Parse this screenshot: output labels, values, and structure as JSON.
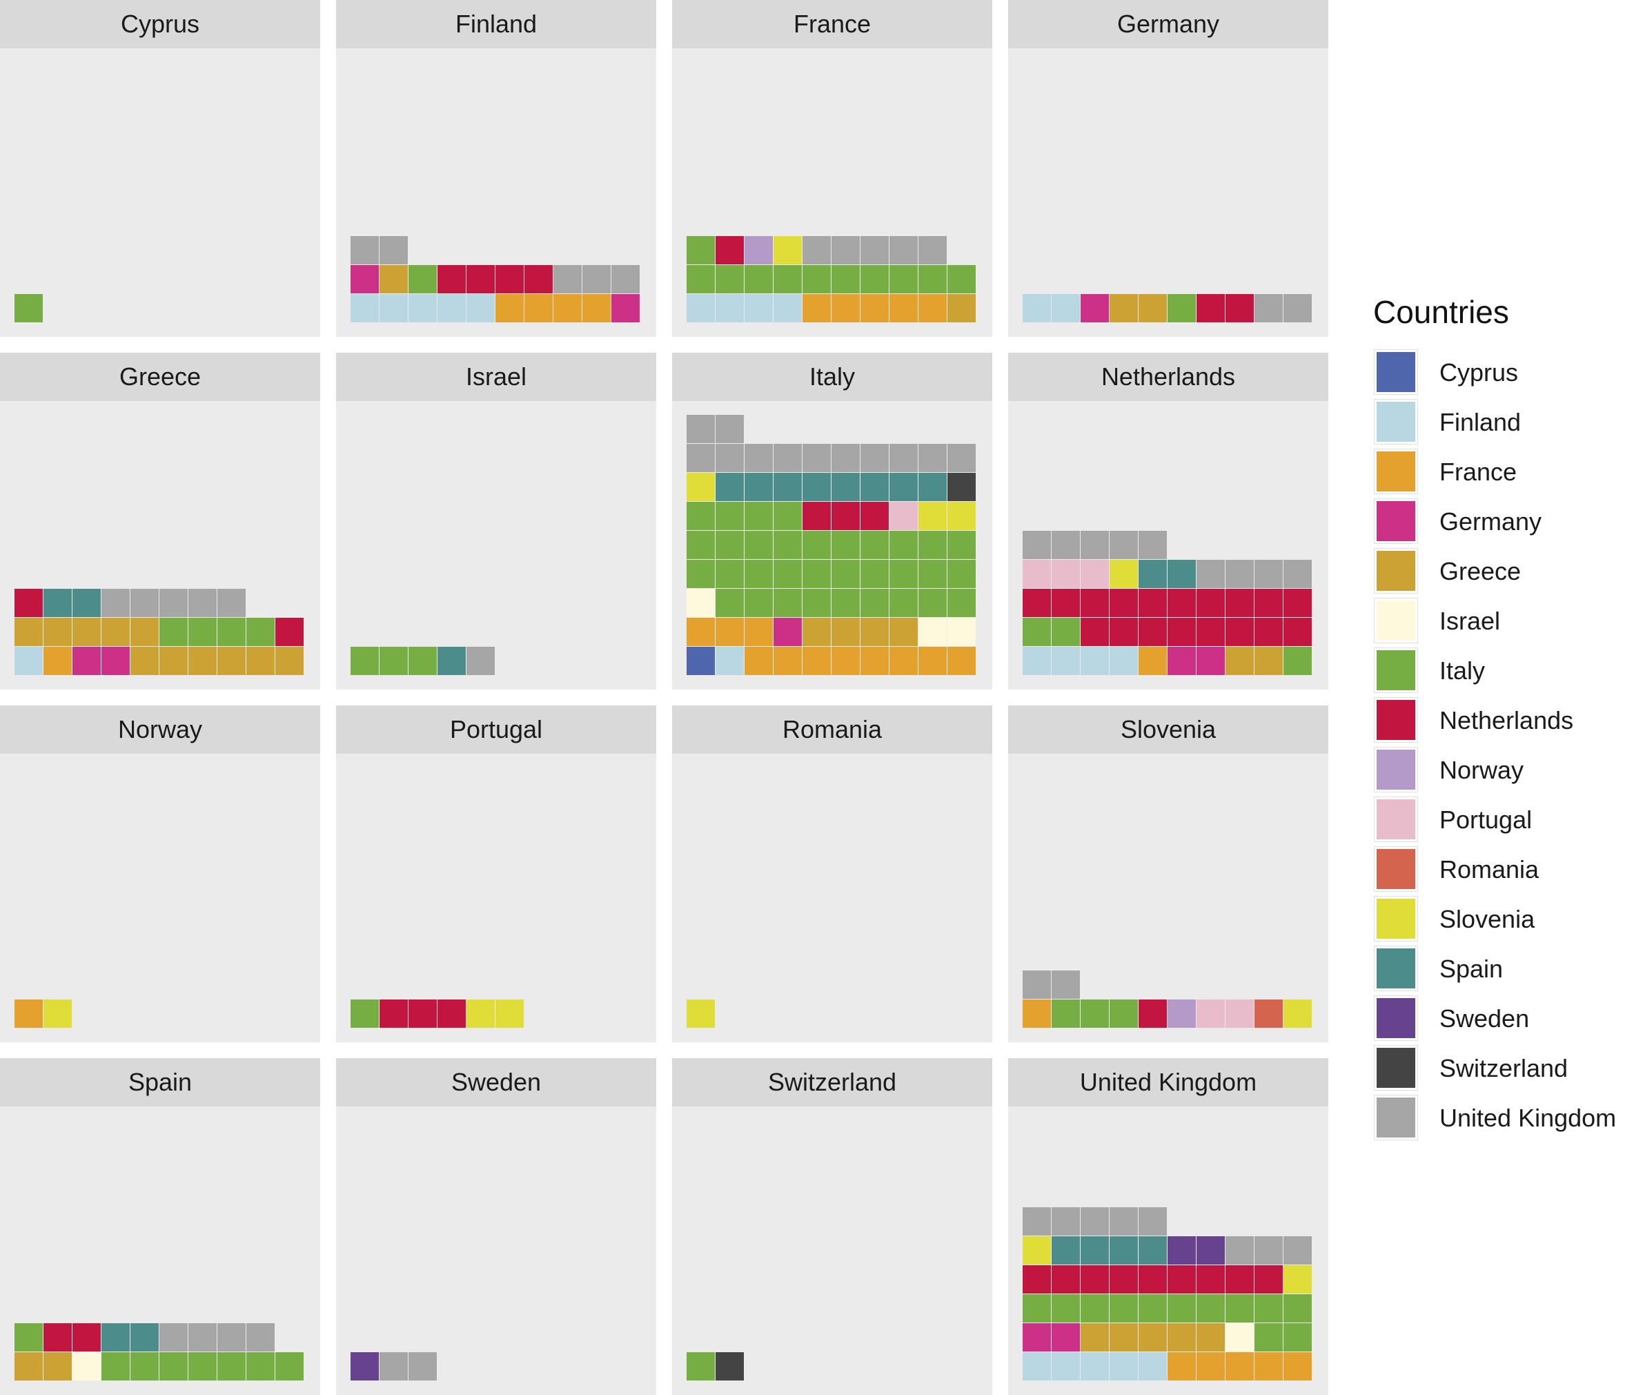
{
  "chart_data": {
    "type": "waffle",
    "layout": "faceted 4x4 grid of waffle charts, legend on right",
    "legend": {
      "title": "Countries",
      "entries": [
        "Cyprus",
        "Finland",
        "France",
        "Germany",
        "Greece",
        "Israel",
        "Italy",
        "Netherlands",
        "Norway",
        "Portugal",
        "Romania",
        "Slovenia",
        "Spain",
        "Sweden",
        "Switzerland",
        "United Kingdom"
      ]
    },
    "colors": {
      "Cyprus": "#4f66ad",
      "Finland": "#b9d7e3",
      "France": "#e5a12d",
      "Germany": "#cd3187",
      "Greece": "#cba233",
      "Israel": "#fef8dd",
      "Italy": "#77ae44",
      "Netherlands": "#c21540",
      "Norway": "#b49ac8",
      "Portugal": "#e8bccb",
      "Romania": "#d4644e",
      "Slovenia": "#e0dd38",
      "Spain": "#4c8c8b",
      "Sweden": "#67428e",
      "Switzerland": "#444444",
      "United Kingdom": "#a6a6a6"
    },
    "panels": [
      {
        "title": "Cyprus",
        "cells": [
          [
            "Italy"
          ]
        ]
      },
      {
        "title": "Finland",
        "cells": [
          [
            "Finland",
            "Finland",
            "Finland",
            "Finland",
            "Finland",
            "France",
            "France",
            "France",
            "France",
            "Germany"
          ],
          [
            "Germany",
            "Greece",
            "Italy",
            "Netherlands",
            "Netherlands",
            "Netherlands",
            "Netherlands",
            "United Kingdom",
            "United Kingdom",
            "United Kingdom"
          ],
          [
            "United Kingdom",
            "United Kingdom"
          ]
        ]
      },
      {
        "title": "France",
        "cells": [
          [
            "Finland",
            "Finland",
            "Finland",
            "Finland",
            "France",
            "France",
            "France",
            "France",
            "France",
            "Greece"
          ],
          [
            "Italy",
            "Italy",
            "Italy",
            "Italy",
            "Italy",
            "Italy",
            "Italy",
            "Italy",
            "Italy",
            "Italy"
          ],
          [
            "Italy",
            "Netherlands",
            "Norway",
            "Slovenia",
            "United Kingdom",
            "United Kingdom",
            "United Kingdom",
            "United Kingdom",
            "United Kingdom"
          ]
        ]
      },
      {
        "title": "Germany",
        "cells": [
          [
            "Finland",
            "Finland",
            "Germany",
            "Greece",
            "Greece",
            "Italy",
            "Netherlands",
            "Netherlands",
            "United Kingdom",
            "United Kingdom"
          ]
        ]
      },
      {
        "title": "Greece",
        "cells": [
          [
            "Finland",
            "France",
            "Germany",
            "Germany",
            "Greece",
            "Greece",
            "Greece",
            "Greece",
            "Greece",
            "Greece"
          ],
          [
            "Greece",
            "Greece",
            "Greece",
            "Greece",
            "Greece",
            "Italy",
            "Italy",
            "Italy",
            "Italy",
            "Netherlands"
          ],
          [
            "Netherlands",
            "Spain",
            "Spain",
            "United Kingdom",
            "United Kingdom",
            "United Kingdom",
            "United Kingdom",
            "United Kingdom"
          ]
        ]
      },
      {
        "title": "Israel",
        "cells": [
          [
            "Italy",
            "Italy",
            "Italy",
            "Spain",
            "United Kingdom"
          ]
        ]
      },
      {
        "title": "Italy",
        "cells": [
          [
            "Cyprus",
            "Finland",
            "France",
            "France",
            "France",
            "France",
            "France",
            "France",
            "France",
            "France"
          ],
          [
            "France",
            "France",
            "France",
            "Germany",
            "Greece",
            "Greece",
            "Greece",
            "Greece",
            "Israel",
            "Israel"
          ],
          [
            "Israel",
            "Italy",
            "Italy",
            "Italy",
            "Italy",
            "Italy",
            "Italy",
            "Italy",
            "Italy",
            "Italy"
          ],
          [
            "Italy",
            "Italy",
            "Italy",
            "Italy",
            "Italy",
            "Italy",
            "Italy",
            "Italy",
            "Italy",
            "Italy"
          ],
          [
            "Italy",
            "Italy",
            "Italy",
            "Italy",
            "Italy",
            "Italy",
            "Italy",
            "Italy",
            "Italy",
            "Italy"
          ],
          [
            "Italy",
            "Italy",
            "Italy",
            "Italy",
            "Netherlands",
            "Netherlands",
            "Netherlands",
            "Portugal",
            "Slovenia",
            "Slovenia"
          ],
          [
            "Slovenia",
            "Spain",
            "Spain",
            "Spain",
            "Spain",
            "Spain",
            "Spain",
            "Spain",
            "Spain",
            "Switzerland"
          ],
          [
            "United Kingdom",
            "United Kingdom",
            "United Kingdom",
            "United Kingdom",
            "United Kingdom",
            "United Kingdom",
            "United Kingdom",
            "United Kingdom",
            "United Kingdom",
            "United Kingdom"
          ],
          [
            "United Kingdom",
            "United Kingdom"
          ]
        ]
      },
      {
        "title": "Netherlands",
        "cells": [
          [
            "Finland",
            "Finland",
            "Finland",
            "Finland",
            "France",
            "Germany",
            "Germany",
            "Greece",
            "Greece",
            "Italy"
          ],
          [
            "Italy",
            "Italy",
            "Netherlands",
            "Netherlands",
            "Netherlands",
            "Netherlands",
            "Netherlands",
            "Netherlands",
            "Netherlands",
            "Netherlands"
          ],
          [
            "Netherlands",
            "Netherlands",
            "Netherlands",
            "Netherlands",
            "Netherlands",
            "Netherlands",
            "Netherlands",
            "Netherlands",
            "Netherlands",
            "Netherlands"
          ],
          [
            "Portugal",
            "Portugal",
            "Portugal",
            "Slovenia",
            "Spain",
            "Spain",
            "United Kingdom",
            "United Kingdom",
            "United Kingdom",
            "United Kingdom"
          ],
          [
            "United Kingdom",
            "United Kingdom",
            "United Kingdom",
            "United Kingdom",
            "United Kingdom"
          ]
        ]
      },
      {
        "title": "Norway",
        "cells": [
          [
            "France",
            "Slovenia"
          ]
        ]
      },
      {
        "title": "Portugal",
        "cells": [
          [
            "Italy",
            "Netherlands",
            "Netherlands",
            "Netherlands",
            "Slovenia",
            "Slovenia"
          ]
        ]
      },
      {
        "title": "Romania",
        "cells": [
          [
            "Slovenia"
          ]
        ]
      },
      {
        "title": "Slovenia",
        "cells": [
          [
            "France",
            "Italy",
            "Italy",
            "Italy",
            "Netherlands",
            "Norway",
            "Portugal",
            "Portugal",
            "Romania",
            "Slovenia"
          ],
          [
            "United Kingdom",
            "United Kingdom"
          ]
        ]
      },
      {
        "title": "Spain",
        "cells": [
          [
            "Greece",
            "Greece",
            "Israel",
            "Italy",
            "Italy",
            "Italy",
            "Italy",
            "Italy",
            "Italy",
            "Italy"
          ],
          [
            "Italy",
            "Netherlands",
            "Netherlands",
            "Spain",
            "Spain",
            "United Kingdom",
            "United Kingdom",
            "United Kingdom",
            "United Kingdom"
          ]
        ]
      },
      {
        "title": "Sweden",
        "cells": [
          [
            "Sweden",
            "United Kingdom",
            "United Kingdom"
          ]
        ]
      },
      {
        "title": "Switzerland",
        "cells": [
          [
            "Italy",
            "Switzerland"
          ]
        ]
      },
      {
        "title": "United Kingdom",
        "cells": [
          [
            "Finland",
            "Finland",
            "Finland",
            "Finland",
            "Finland",
            "France",
            "France",
            "France",
            "France",
            "France"
          ],
          [
            "Germany",
            "Germany",
            "Greece",
            "Greece",
            "Greece",
            "Greece",
            "Greece",
            "Israel",
            "Italy",
            "Italy"
          ],
          [
            "Italy",
            "Italy",
            "Italy",
            "Italy",
            "Italy",
            "Italy",
            "Italy",
            "Italy",
            "Italy",
            "Italy"
          ],
          [
            "Netherlands",
            "Netherlands",
            "Netherlands",
            "Netherlands",
            "Netherlands",
            "Netherlands",
            "Netherlands",
            "Netherlands",
            "Netherlands",
            "Slovenia"
          ],
          [
            "Slovenia",
            "Spain",
            "Spain",
            "Spain",
            "Spain",
            "Sweden",
            "Sweden",
            "United Kingdom",
            "United Kingdom",
            "United Kingdom"
          ],
          [
            "United Kingdom",
            "United Kingdom",
            "United Kingdom",
            "United Kingdom",
            "United Kingdom"
          ]
        ]
      }
    ]
  }
}
